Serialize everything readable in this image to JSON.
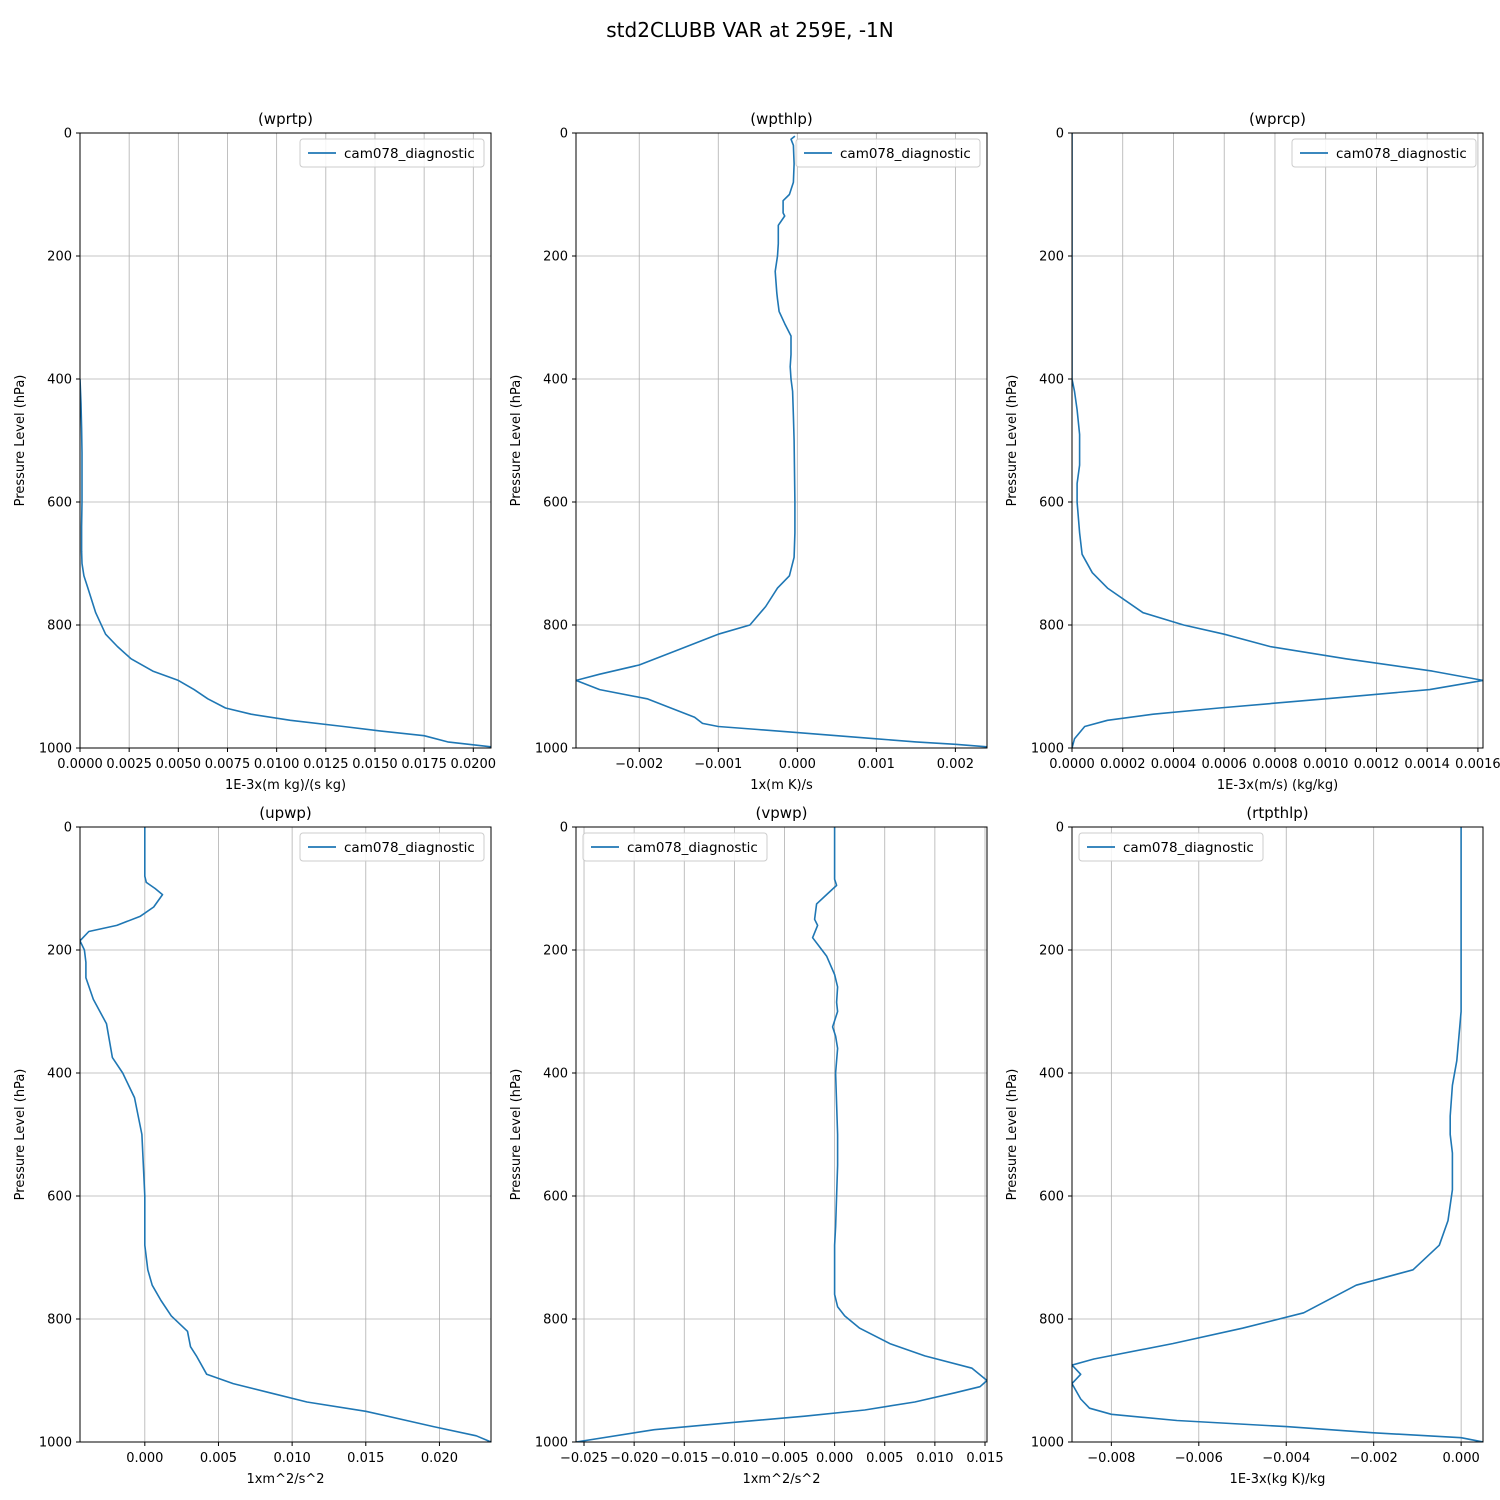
{
  "figure": {
    "suptitle": "std2CLUBB VAR at 259E, -1N",
    "line_color": "#1f77b4"
  },
  "chart_data": [
    {
      "type": "line",
      "title": "(wprtp)",
      "xlabel": "1E-3x(m kg)/(s kg)",
      "ylabel": "Pressure Level (hPa)",
      "xlim": [
        0.0,
        0.0209
      ],
      "ylim": [
        1000,
        0
      ],
      "xticks": [
        0.0,
        0.0025,
        0.005,
        0.0075,
        0.01,
        0.0125,
        0.015,
        0.0175,
        0.02
      ],
      "xtick_labels": [
        "0.0000",
        "0.0025",
        "0.0050",
        "0.0075",
        "0.0100",
        "0.0125",
        "0.0150",
        "0.0175",
        "0.0200"
      ],
      "yticks": [
        0,
        200,
        400,
        600,
        800,
        1000
      ],
      "ytick_labels": [
        "0",
        "200",
        "400",
        "600",
        "800",
        "1000"
      ],
      "grid": true,
      "legend": {
        "position": "top-right",
        "entries": [
          "cam078_diagnostic"
        ]
      },
      "series": [
        {
          "name": "cam078_diagnostic",
          "x": [
            0,
            5e-05,
            8e-05,
            0.0001,
            0.0001,
            0.0001,
            8e-05,
            8e-05,
            0.0001,
            0.0002,
            0.0004,
            0.0008,
            0.0013,
            0.0019,
            0.0026,
            0.0037,
            0.005,
            0.0058,
            0.0065,
            0.0074,
            0.0087,
            0.0107,
            0.0134,
            0.0152,
            0.0175,
            0.0187,
            0.0209
          ],
          "y": [
            400,
            440,
            480,
            520,
            560,
            600,
            640,
            680,
            700,
            720,
            740,
            780,
            815,
            835,
            855,
            875,
            890,
            905,
            920,
            935,
            945,
            955,
            965,
            972,
            980,
            990,
            998
          ]
        }
      ]
    },
    {
      "type": "line",
      "title": "(wpthlp)",
      "xlabel": "1x(m K)/s",
      "ylabel": "Pressure Level (hPa)",
      "xlim": [
        -0.0028,
        0.0024
      ],
      "ylim": [
        1000,
        0
      ],
      "xticks": [
        -0.002,
        -0.001,
        0.0,
        0.001,
        0.002
      ],
      "xtick_labels": [
        "−0.002",
        "−0.001",
        "0.000",
        "0.001",
        "0.002"
      ],
      "yticks": [
        0,
        200,
        400,
        600,
        800,
        1000
      ],
      "ytick_labels": [
        "0",
        "200",
        "400",
        "600",
        "800",
        "1000"
      ],
      "grid": true,
      "legend": {
        "position": "top-right",
        "entries": [
          "cam078_diagnostic"
        ]
      },
      "series": [
        {
          "name": "cam078_diagnostic",
          "x": [
            -3e-05,
            -8e-05,
            -5e-05,
            -4e-05,
            -5e-05,
            -0.0001,
            -0.00018,
            -0.00018,
            -0.00016,
            -0.00024,
            -0.00024,
            -0.00025,
            -0.00028,
            -0.00026,
            -0.00025,
            -0.00023,
            -0.00016,
            -8e-05,
            -8e-05,
            -9e-05,
            -8e-05,
            -6e-05,
            -5e-05,
            -4e-05,
            -3e-05,
            -3e-05,
            -4e-05,
            -0.0001,
            -0.00025,
            -0.0004,
            -0.0006,
            -0.001,
            -0.0015,
            -0.002,
            -0.0025,
            -0.0028,
            -0.0025,
            -0.0019,
            -0.0016,
            -0.0013,
            -0.0012,
            -0.001,
            -0.0005,
            0.0,
            0.0005,
            0.001,
            0.0015,
            0.002,
            0.0024
          ],
          "y": [
            5,
            10,
            20,
            50,
            80,
            100,
            110,
            130,
            135,
            150,
            180,
            200,
            225,
            260,
            270,
            290,
            310,
            330,
            360,
            380,
            400,
            420,
            460,
            500,
            600,
            650,
            690,
            720,
            740,
            770,
            800,
            815,
            840,
            865,
            880,
            890,
            905,
            920,
            935,
            950,
            960,
            965,
            970,
            975,
            980,
            985,
            990,
            994,
            998
          ]
        }
      ]
    },
    {
      "type": "line",
      "title": "(wprcp)",
      "xlabel": "1E-3x(m/s) (kg/kg)",
      "ylabel": "Pressure Level (hPa)",
      "xlim": [
        0.0,
        0.00162
      ],
      "ylim": [
        1000,
        0
      ],
      "xticks": [
        0.0,
        0.0002,
        0.0004,
        0.0006,
        0.0008,
        0.001,
        0.0012,
        0.0014,
        0.0016
      ],
      "xtick_labels": [
        "0.0000",
        "0.0002",
        "0.0004",
        "0.0006",
        "0.0008",
        "0.0010",
        "0.0012",
        "0.0014",
        "0.0016"
      ],
      "yticks": [
        0,
        200,
        400,
        600,
        800,
        1000
      ],
      "ytick_labels": [
        "0",
        "200",
        "400",
        "600",
        "800",
        "1000"
      ],
      "grid": true,
      "legend": {
        "position": "top-right",
        "entries": [
          "cam078_diagnostic"
        ]
      },
      "series": [
        {
          "name": "cam078_diagnostic",
          "x": [
            0,
            0,
            1e-05,
            2e-05,
            3e-05,
            3e-05,
            3e-05,
            2e-05,
            2e-05,
            3e-05,
            4e-05,
            8e-05,
            0.00014,
            0.00028,
            0.00044,
            0.0006,
            0.00078,
            0.00108,
            0.00142,
            0.00162,
            0.00141,
            0.001,
            0.00058,
            0.00032,
            0.00014,
            5e-05,
            1e-05,
            0
          ],
          "y": [
            0,
            400,
            420,
            450,
            490,
            510,
            540,
            570,
            600,
            650,
            685,
            715,
            740,
            780,
            800,
            815,
            835,
            855,
            875,
            890,
            905,
            920,
            935,
            945,
            955,
            965,
            985,
            1000
          ]
        }
      ]
    },
    {
      "type": "line",
      "title": "(upwp)",
      "xlabel": "1xm^2/s^2",
      "ylabel": "Pressure Level (hPa)",
      "xlim": [
        -0.0044,
        0.0235
      ],
      "ylim": [
        1000,
        0
      ],
      "xticks": [
        0.0,
        0.005,
        0.01,
        0.015,
        0.02
      ],
      "xtick_labels": [
        "0.000",
        "0.005",
        "0.010",
        "0.015",
        "0.020"
      ],
      "yticks": [
        0,
        200,
        400,
        600,
        800,
        1000
      ],
      "ytick_labels": [
        "0",
        "200",
        "400",
        "600",
        "800",
        "1000"
      ],
      "grid": true,
      "legend": {
        "position": "top-right",
        "entries": [
          "cam078_diagnostic"
        ]
      },
      "series": [
        {
          "name": "cam078_diagnostic",
          "x": [
            0.0,
            0.0,
            0.0,
            0.0001,
            0.0007,
            0.0012,
            0.0006,
            -0.0003,
            -0.0019,
            -0.0038,
            -0.0044,
            -0.0041,
            -0.004,
            -0.004,
            -0.0035,
            -0.0026,
            -0.0022,
            -0.0015,
            -0.0007,
            -0.0002,
            0.0,
            0.0,
            0.0,
            0.0002,
            0.0005,
            0.0011,
            0.0018,
            0.0029,
            0.0031,
            0.0035,
            0.0042,
            0.006,
            0.0085,
            0.011,
            0.015,
            0.0196,
            0.0225,
            0.0235
          ],
          "y": [
            0,
            50,
            80,
            90,
            100,
            110,
            130,
            145,
            160,
            170,
            185,
            200,
            220,
            245,
            280,
            320,
            375,
            400,
            440,
            500,
            600,
            650,
            680,
            720,
            745,
            770,
            795,
            820,
            845,
            860,
            890,
            905,
            920,
            935,
            950,
            975,
            990,
            1000
          ]
        }
      ]
    },
    {
      "type": "line",
      "title": "(vpwp)",
      "xlabel": "1xm^2/s^2",
      "ylabel": "Pressure Level (hPa)",
      "xlim": [
        -0.0258,
        0.0152
      ],
      "ylim": [
        1000,
        0
      ],
      "xticks": [
        -0.025,
        -0.02,
        -0.015,
        -0.01,
        -0.005,
        0.0,
        0.005,
        0.01,
        0.015
      ],
      "xtick_labels": [
        "−0.025",
        "−0.020",
        "−0.015",
        "−0.010",
        "−0.005",
        "0.000",
        "0.005",
        "0.010",
        "0.015"
      ],
      "yticks": [
        0,
        200,
        400,
        600,
        800,
        1000
      ],
      "ytick_labels": [
        "0",
        "200",
        "400",
        "600",
        "800",
        "1000"
      ],
      "grid": true,
      "legend": {
        "position": "top-left",
        "entries": [
          "cam078_diagnostic"
        ]
      },
      "series": [
        {
          "name": "cam078_diagnostic",
          "x": [
            0.0,
            0.0,
            0.0002,
            -0.0008,
            -0.0018,
            -0.002,
            -0.0017,
            -0.0022,
            -0.0015,
            -0.0008,
            0.0,
            0.0003,
            0.0002,
            0.0003,
            -0.0002,
            0.0001,
            0.0003,
            0.0002,
            0.0001,
            0.0002,
            0.0003,
            0.0003,
            0.0002,
            0.0001,
            0.0,
            0.0,
            0.0,
            0.0003,
            0.001,
            0.0025,
            0.0055,
            0.009,
            0.0137,
            0.0152,
            0.0145,
            0.012,
            0.008,
            0.003,
            -0.003,
            -0.01,
            -0.018,
            -0.0258
          ],
          "y": [
            0,
            85,
            95,
            110,
            125,
            150,
            160,
            180,
            195,
            210,
            240,
            260,
            285,
            300,
            325,
            340,
            360,
            380,
            400,
            450,
            500,
            550,
            600,
            650,
            680,
            720,
            760,
            780,
            795,
            815,
            840,
            860,
            880,
            900,
            910,
            920,
            935,
            948,
            958,
            968,
            980,
            1000
          ]
        }
      ]
    },
    {
      "type": "line",
      "title": "(rtpthlp)",
      "xlabel": "1E-3x(kg K)/kg",
      "ylabel": "Pressure Level (hPa)",
      "xlim": [
        -0.0089,
        0.0005
      ],
      "ylim": [
        1000,
        0
      ],
      "xticks": [
        -0.008,
        -0.006,
        -0.004,
        -0.002,
        0.0
      ],
      "xtick_labels": [
        "−0.008",
        "−0.006",
        "−0.004",
        "−0.002",
        "0.000"
      ],
      "yticks": [
        0,
        200,
        400,
        600,
        800,
        1000
      ],
      "ytick_labels": [
        "0",
        "200",
        "400",
        "600",
        "800",
        "1000"
      ],
      "grid": true,
      "legend": {
        "position": "top-left",
        "entries": [
          "cam078_diagnostic"
        ]
      },
      "series": [
        {
          "name": "cam078_diagnostic",
          "x": [
            0.0,
            0.0,
            0.0,
            -0.0001,
            -0.0002,
            -0.00025,
            -0.00025,
            -0.0002,
            -0.0002,
            -0.0003,
            -0.0005,
            -0.0011,
            -0.0024,
            -0.0036,
            -0.005,
            -0.0066,
            -0.0084,
            -0.0089,
            -0.0087,
            -0.0089,
            -0.0087,
            -0.0085,
            -0.008,
            -0.0065,
            -0.004,
            -0.002,
            0.0,
            0.0005
          ],
          "y": [
            0,
            100,
            300,
            380,
            420,
            470,
            500,
            530,
            590,
            640,
            680,
            720,
            745,
            790,
            815,
            840,
            865,
            875,
            890,
            905,
            930,
            945,
            955,
            965,
            975,
            985,
            993,
            1000
          ]
        }
      ]
    }
  ]
}
